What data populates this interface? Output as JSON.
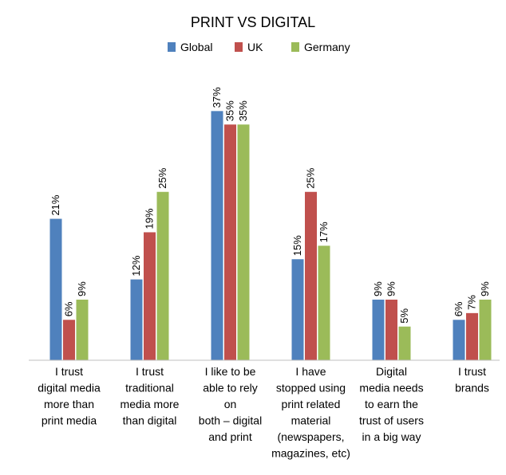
{
  "chart_data": {
    "type": "bar",
    "title": "PRINT VS DIGITAL",
    "legend_position": "top",
    "grid": false,
    "xlabel": "",
    "ylabel": "",
    "ylim": [
      0,
      40
    ],
    "categories": [
      [
        "I trust",
        "digital media",
        "more than",
        "print media"
      ],
      [
        "I trust",
        "traditional",
        "media more",
        "than digital"
      ],
      [
        "I like to be",
        "able to rely",
        "on",
        "both – digital",
        "and print"
      ],
      [
        "I have",
        "stopped using",
        "print related",
        "material",
        "(newspapers,",
        "magazines, etc)"
      ],
      [
        "Digital",
        "media needs",
        "to earn the",
        "trust of users",
        "in a big way"
      ],
      [
        "I trust",
        "brands"
      ]
    ],
    "series": [
      {
        "name": "Global",
        "color": "#4f81bd",
        "values": [
          21,
          12,
          37,
          15,
          9,
          6
        ]
      },
      {
        "name": "UK",
        "color": "#c0504d",
        "values": [
          6,
          19,
          35,
          25,
          9,
          7
        ]
      },
      {
        "name": "Germany",
        "color": "#9bbb59",
        "values": [
          9,
          25,
          35,
          17,
          5,
          9
        ]
      }
    ],
    "value_suffix": "%"
  }
}
